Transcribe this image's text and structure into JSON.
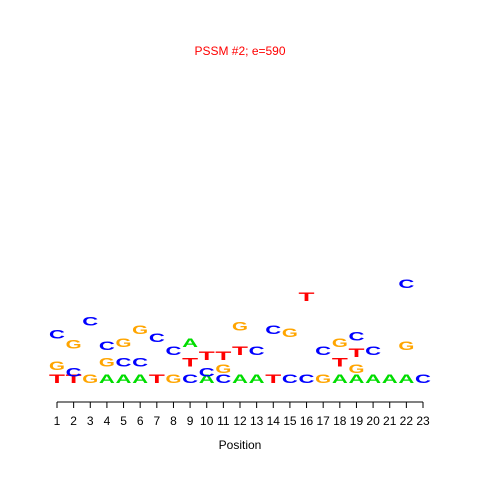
{
  "chart_data": {
    "type": "logo",
    "title": "PSSM #2; e=590",
    "xlabel": "Position",
    "xlim": [
      1,
      23
    ],
    "xticks": [
      1,
      2,
      3,
      4,
      5,
      6,
      7,
      8,
      9,
      10,
      11,
      12,
      13,
      14,
      15,
      16,
      17,
      18,
      19,
      20,
      21,
      22,
      23
    ],
    "ylim": [
      0,
      2
    ],
    "colors": {
      "A": "#00dd00",
      "C": "#0000ff",
      "G": "#ffa500",
      "T": "#ff0000"
    },
    "stacks": [
      {
        "x": 1,
        "letters": [
          "T",
          "G",
          "C"
        ],
        "heights": [
          0.08,
          0.19,
          1.72
        ]
      },
      {
        "x": 2,
        "letters": [
          "T",
          "C",
          "G"
        ],
        "heights": [
          0.04,
          0.17,
          1.3
        ]
      },
      {
        "x": 3,
        "letters": [
          "G",
          "C"
        ],
        "heights": [
          0.35,
          1.6
        ]
      },
      {
        "x": 4,
        "letters": [
          "A",
          "G",
          "C"
        ],
        "heights": [
          0.1,
          0.1,
          0.89
        ]
      },
      {
        "x": 5,
        "letters": [
          "A",
          "C",
          "G"
        ],
        "heights": [
          0.1,
          0.12,
          0.85
        ]
      },
      {
        "x": 6,
        "letters": [
          "A",
          "C",
          "G"
        ],
        "heights": [
          0.1,
          0.2,
          0.6
        ]
      },
      {
        "x": 7,
        "letters": [
          "T",
          "C"
        ],
        "heights": [
          0.25,
          0.55
        ]
      },
      {
        "x": 8,
        "letters": [
          "G",
          "C"
        ],
        "heights": [
          0.17,
          1.1
        ]
      },
      {
        "x": 9,
        "letters": [
          "C",
          "T",
          "A"
        ],
        "heights": [
          0.1,
          0.12,
          0.87
        ]
      },
      {
        "x": 10,
        "letters": [
          "A",
          "C",
          "T"
        ],
        "heights": [
          0.04,
          0.1,
          0.1
        ]
      },
      {
        "x": 11,
        "letters": [
          "C",
          "G",
          "T"
        ],
        "heights": [
          0.06,
          0.08,
          0.12
        ]
      },
      {
        "x": 12,
        "letters": [
          "A",
          "T",
          "G"
        ],
        "heights": [
          0.17,
          0.15,
          0.3
        ]
      },
      {
        "x": 13,
        "letters": [
          "A",
          "C"
        ],
        "heights": [
          0.17,
          1.37
        ]
      },
      {
        "x": 14,
        "letters": [
          "T",
          "C"
        ],
        "heights": [
          0.3,
          1.7
        ]
      },
      {
        "x": 15,
        "letters": [
          "C",
          "G"
        ],
        "heights": [
          0.28,
          0.99
        ]
      },
      {
        "x": 16,
        "letters": [
          "C",
          "T"
        ],
        "heights": [
          0.5,
          0.54
        ]
      },
      {
        "x": 17,
        "letters": [
          "G",
          "C"
        ],
        "heights": [
          0.17,
          1.37
        ]
      },
      {
        "x": 18,
        "letters": [
          "A",
          "T",
          "G"
        ],
        "heights": [
          0.1,
          0.12,
          0.87
        ]
      },
      {
        "x": 19,
        "letters": [
          "A",
          "G",
          "T",
          "C"
        ],
        "heights": [
          0.06,
          0.1,
          0.1,
          0.55
        ]
      },
      {
        "x": 20,
        "letters": [
          "A",
          "C"
        ],
        "heights": [
          0.17,
          1.37
        ]
      },
      {
        "x": 21,
        "letters": [
          "A"
        ],
        "heights": [
          1.95
        ]
      },
      {
        "x": 22,
        "letters": [
          "A",
          "G",
          "C"
        ],
        "heights": [
          0.2,
          0.38,
          0.98
        ]
      },
      {
        "x": 23,
        "letters": [
          "C"
        ],
        "heights": [
          1.97
        ]
      }
    ]
  }
}
